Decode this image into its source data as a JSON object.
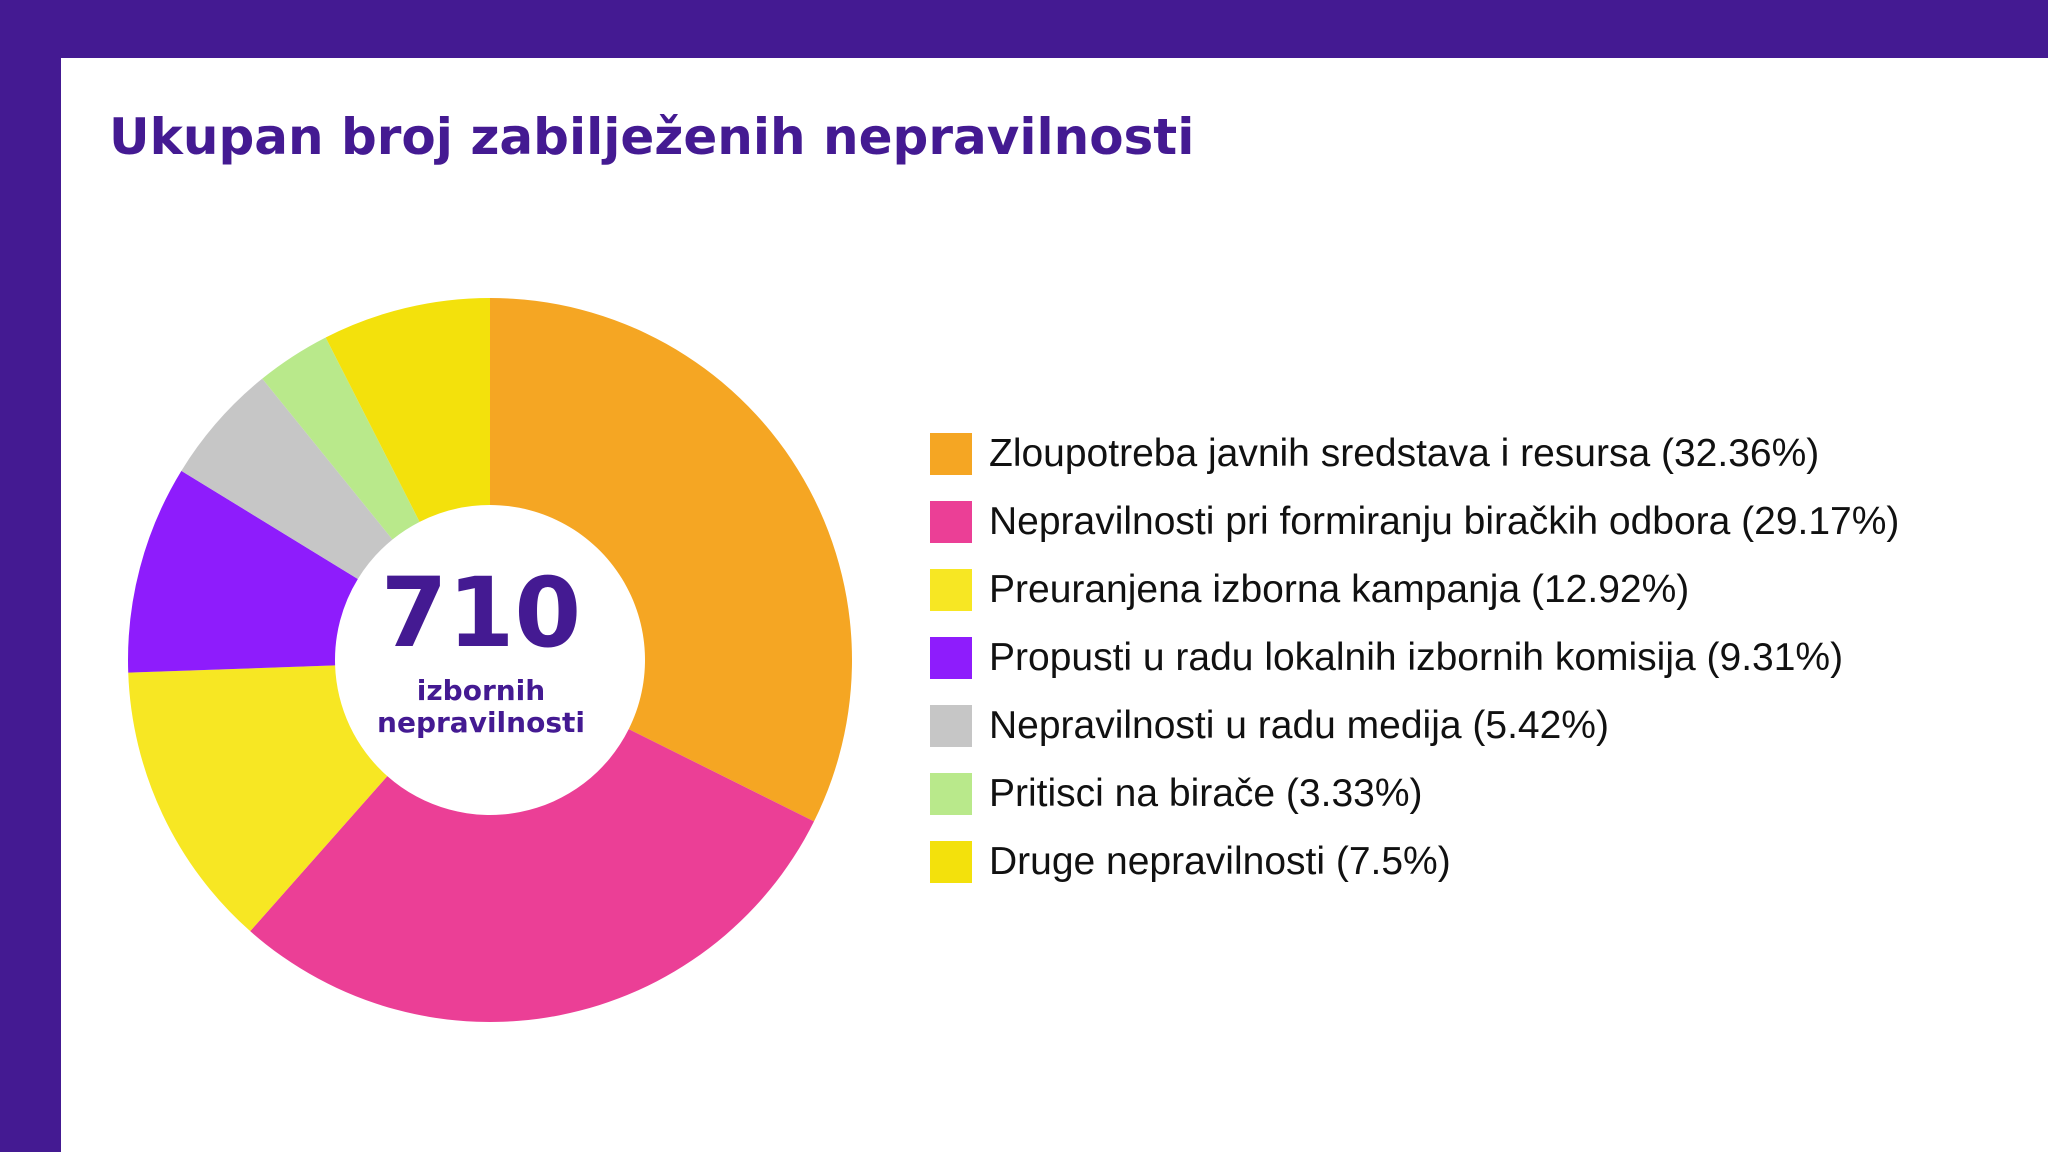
{
  "colors": {
    "brand": "#441a92",
    "background": "#ffffff"
  },
  "chart_data": {
    "type": "pie",
    "title": "Ukupan broj zabilježenih nepravilnosti",
    "total": "710",
    "total_label_line1": "izbornih",
    "total_label_line2": "nepravilnosti",
    "legend_position": "right",
    "categories": [
      "Zloupotreba javnih sredstava i resursa (32.36%)",
      "Nepravilnosti pri formiranju biračkih odbora (29.17%)",
      "Preuranjena izborna kampanja (12.92%)",
      "Propusti u radu lokalnih izbornih komisija (9.31%)",
      "Nepravilnosti u radu medija (5.42%)",
      "Pritisci na birače (3.33%)",
      "Druge nepravilnosti (7.5%)"
    ],
    "values": [
      32.36,
      29.17,
      12.92,
      9.31,
      5.42,
      3.33,
      7.5
    ],
    "colors": [
      "#f5a623",
      "#eb3f96",
      "#f7e723",
      "#8e1cfc",
      "#c6c6c6",
      "#b9e98b",
      "#f3e10c"
    ]
  }
}
